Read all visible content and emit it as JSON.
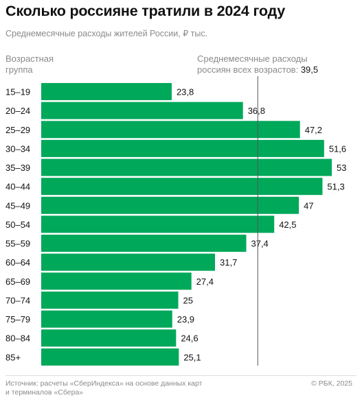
{
  "title": "Сколько россияне тратили в 2024 году",
  "subtitle": "Среднемесячные расходы жителей России, ₽ тыс.",
  "left_header": [
    "Возрастная",
    "группа"
  ],
  "right_header": {
    "line1": "Среднемесячные расходы",
    "line2": "россиян всех возрастов:",
    "average_label": "39,5"
  },
  "footer": {
    "source_lines": [
      "Источник: расчеты «СберИндекса» на основе данных карт",
      "и терминалов «Сбера»"
    ],
    "copyright": "© РБК, 2025"
  },
  "colors": {
    "bar": "#00a85a",
    "avg_line": "#555555",
    "text": "#111111",
    "muted": "#8a8a8a"
  },
  "chart_data": {
    "type": "bar",
    "orientation": "horizontal",
    "categories": [
      "15–19",
      "20–24",
      "25–29",
      "30–34",
      "35–39",
      "40–44",
      "45–49",
      "50–54",
      "55–59",
      "60–64",
      "65–69",
      "70–74",
      "75–79",
      "80–84",
      "85+"
    ],
    "values": [
      23.8,
      36.8,
      47.2,
      51.6,
      53,
      51.3,
      47,
      42.5,
      37.4,
      31.7,
      27.4,
      25,
      23.9,
      24.6,
      25.1
    ],
    "value_labels": [
      "23,8",
      "36,8",
      "47,2",
      "51,6",
      "53",
      "51,3",
      "47",
      "42,5",
      "37,4",
      "31,7",
      "27,4",
      "25",
      "23,9",
      "24,6",
      "25,1"
    ],
    "average": 39.5,
    "xlim": [
      0,
      53
    ],
    "grid": false,
    "legend": "none"
  }
}
